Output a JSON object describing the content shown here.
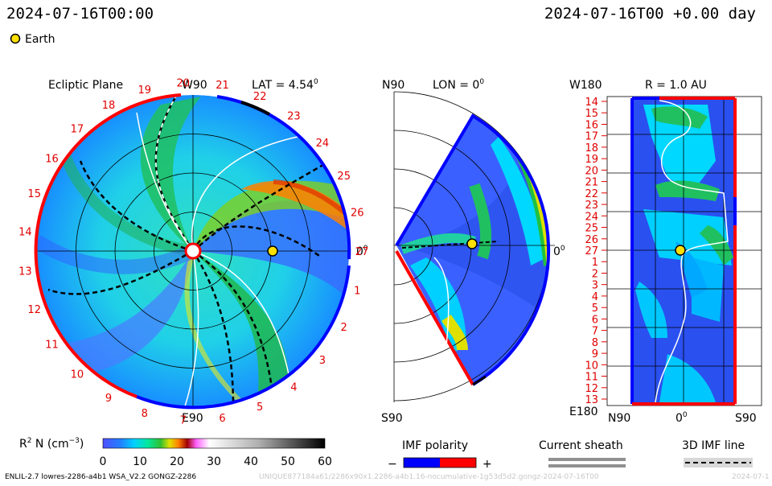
{
  "header": {
    "date_left": "2024-07-16T00:00",
    "date_right": "2024-07-16T00 +0.00 day",
    "legend_earth": "Earth"
  },
  "ecliptic": {
    "title": "Ecliptic Plane",
    "lat_label": "LAT = 4.54",
    "lat_deg": "0",
    "top_label": "W90",
    "bottom_label": "E90",
    "right_label": "0",
    "right_deg": "0",
    "carrington": [
      "1",
      "2",
      "3",
      "4",
      "5",
      "6",
      "7",
      "8",
      "9",
      "10",
      "11",
      "12",
      "13",
      "14",
      "15",
      "16",
      "17",
      "18",
      "19",
      "20",
      "21",
      "22",
      "23",
      "24",
      "25",
      "26",
      "27"
    ]
  },
  "meridional": {
    "title": "LON = 0",
    "title_deg": "0",
    "top_label": "N90",
    "bottom_label": "S90",
    "right_label": "0",
    "right_deg": "0"
  },
  "sphere": {
    "title": "R = 1.0 AU",
    "top_left": "W180",
    "bottom_left": "E180",
    "x_left": "N90",
    "x_mid": "0",
    "x_mid_deg": "0",
    "x_right": "S90",
    "rows": [
      "14",
      "15",
      "16",
      "17",
      "18",
      "19",
      "20",
      "21",
      "22",
      "23",
      "24",
      "25",
      "26",
      "27",
      "1",
      "2",
      "3",
      "4",
      "5",
      "6",
      "7",
      "8",
      "9",
      "10",
      "11",
      "12",
      "13"
    ]
  },
  "colorbar": {
    "label_prefix": "R",
    "label_sup": "2",
    "label_mid": " N (cm",
    "label_exp": "−3",
    "label_end": ")",
    "ticks": [
      "0",
      "10",
      "20",
      "30",
      "40",
      "50",
      "60"
    ],
    "colors": [
      "#4040ff",
      "#00c8ff",
      "#00e8a0",
      "#20c040",
      "#e0e000",
      "#ff8000",
      "#a00000",
      "#ff80ff",
      "#ffffff",
      "#c0c0c0",
      "#606060",
      "#000000"
    ]
  },
  "legends": {
    "imf_title": "IMF polarity",
    "imf_minus": "−",
    "imf_plus": "+",
    "sheath_title": "Current sheath",
    "imf3d_title": "3D IMF line",
    "imf_neg_color": "#0000ff",
    "imf_pos_color": "#ff0000"
  },
  "footer": {
    "model": "ENLIL-2.7 lowres-2286-a4b1 WSA_V2.2 GONGZ-2286",
    "run_id": "UNIQUE877184a61/2286x90x1.2286-a4b1.16-nocumulative-1g53d5d2.gongz-2024-07-16T00",
    "run_date": "2024-07-1"
  },
  "colors": {
    "earth": "#ffe000",
    "imf_negative": "#0000ff",
    "imf_positive": "#ff0000",
    "background_field": "#1fd8ee"
  }
}
